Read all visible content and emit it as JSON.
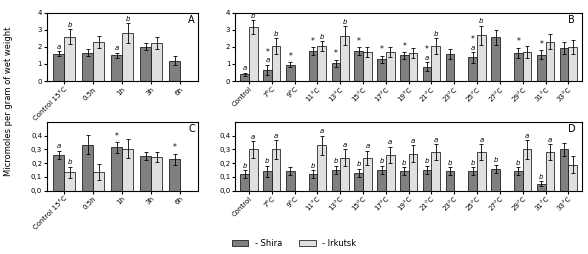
{
  "chart_data": [
    {
      "type": "bar",
      "title": "A",
      "categories": [
        "Control 15°C",
        "0.5h",
        "1h",
        "3h",
        "6h"
      ],
      "series": [
        {
          "name": "- Shira",
          "color": "#808080",
          "values": [
            1.6,
            1.65,
            1.5,
            2.0,
            1.2
          ],
          "errors": [
            0.15,
            0.2,
            0.15,
            0.2,
            0.25
          ],
          "letters": [
            "a",
            null,
            "a",
            null,
            null
          ]
        },
        {
          "name": "- Irkutsk",
          "color": "#e0e0e0",
          "values": [
            2.6,
            2.3,
            2.8,
            2.2,
            null
          ],
          "errors": [
            0.45,
            0.35,
            0.6,
            0.35,
            null
          ],
          "letters": [
            "b",
            null,
            "b",
            null,
            null
          ]
        }
      ],
      "ylim": [
        0,
        4
      ],
      "yticks": [
        0,
        1,
        2,
        3,
        4
      ]
    },
    {
      "type": "bar",
      "title": "B",
      "categories": [
        "Control",
        "7°C",
        "9°C",
        "11°C",
        "13°C",
        "15°C",
        "17°C",
        "19°C",
        "21°C",
        "23°C",
        "25°C",
        "27°C",
        "29°C",
        "31°C",
        "33°C"
      ],
      "series": [
        {
          "name": "- Shira",
          "color": "#808080",
          "values": [
            0.4,
            0.65,
            0.95,
            1.75,
            1.05,
            1.75,
            1.28,
            1.5,
            0.85,
            1.6,
            1.38,
            2.55,
            1.65,
            1.55,
            1.95
          ],
          "errors": [
            0.1,
            0.3,
            0.15,
            0.25,
            0.2,
            0.25,
            0.2,
            0.2,
            0.25,
            0.3,
            0.3,
            0.45,
            0.3,
            0.25,
            0.35
          ],
          "letters": [
            "a",
            "a",
            null,
            null,
            null,
            null,
            null,
            null,
            "a",
            null,
            "a",
            null,
            null,
            null,
            null
          ],
          "stars": [
            null,
            "*",
            "*",
            "*",
            "*",
            "*",
            "*",
            "*",
            "*",
            null,
            "*",
            null,
            "*",
            "*",
            null
          ]
        },
        {
          "name": "- Irkutsk",
          "color": "#e0e0e0",
          "values": [
            3.15,
            2.05,
            null,
            2.05,
            2.65,
            1.72,
            1.72,
            1.65,
            2.05,
            null,
            2.68,
            null,
            1.72,
            2.3,
            2.0
          ],
          "errors": [
            0.4,
            0.45,
            null,
            0.3,
            0.55,
            0.3,
            0.3,
            0.3,
            0.45,
            null,
            0.55,
            null,
            0.35,
            0.45,
            0.4
          ],
          "letters": [
            "b",
            "b",
            null,
            "b",
            "b",
            null,
            null,
            null,
            "b",
            null,
            "b",
            null,
            null,
            null,
            null
          ]
        }
      ],
      "ylim": [
        0,
        4
      ],
      "yticks": [
        0,
        1,
        2,
        3,
        4
      ]
    },
    {
      "type": "bar",
      "title": "C",
      "categories": [
        "Control 15°C",
        "0.5h",
        "1h",
        "3h",
        "6h"
      ],
      "series": [
        {
          "name": "- Shira",
          "color": "#808080",
          "values": [
            0.26,
            0.335,
            0.315,
            0.25,
            0.23
          ],
          "errors": [
            0.03,
            0.07,
            0.04,
            0.03,
            0.04
          ],
          "letters": [
            "a",
            null,
            null,
            null,
            null
          ],
          "stars": [
            null,
            null,
            "*",
            null,
            "*"
          ]
        },
        {
          "name": "- Irkutsk",
          "color": "#e0e0e0",
          "values": [
            0.135,
            0.135,
            0.305,
            0.245,
            null
          ],
          "errors": [
            0.04,
            0.06,
            0.07,
            0.04,
            null
          ],
          "letters": [
            "b",
            null,
            null,
            null,
            null
          ]
        }
      ],
      "ylim": [
        0,
        0.5
      ],
      "yticks": [
        {
          "value": 0.0,
          "label": "0,0"
        },
        {
          "value": 0.1,
          "label": "0,1"
        },
        {
          "value": 0.2,
          "label": "0,2"
        },
        {
          "value": 0.3,
          "label": "0,3"
        },
        {
          "value": 0.4,
          "label": "0,4"
        }
      ]
    },
    {
      "type": "bar",
      "title": "D",
      "categories": [
        "Control",
        "7°C",
        "9°C",
        "11°C",
        "13°C",
        "15°C",
        "17°C",
        "19°C",
        "21°C",
        "23°C",
        "25°C",
        "27°C",
        "29°C",
        "31°C",
        "33°C"
      ],
      "series": [
        {
          "name": "- Shira",
          "color": "#808080",
          "values": [
            0.12,
            0.14,
            0.14,
            0.12,
            0.15,
            0.13,
            0.15,
            0.14,
            0.15,
            0.14,
            0.14,
            0.16,
            0.14,
            0.05,
            0.3
          ],
          "errors": [
            0.03,
            0.04,
            0.03,
            0.03,
            0.03,
            0.03,
            0.03,
            0.03,
            0.03,
            0.03,
            0.03,
            0.03,
            0.03,
            0.02,
            0.05
          ],
          "letters": [
            "b",
            "b",
            null,
            "b",
            "b",
            "b",
            "b",
            "b",
            "b",
            "b",
            "b",
            "b",
            "b",
            "b",
            null
          ]
        },
        {
          "name": "- Irkutsk",
          "color": "#e0e0e0",
          "values": [
            0.3,
            0.3,
            null,
            0.33,
            0.24,
            0.24,
            0.26,
            0.27,
            0.28,
            null,
            0.28,
            null,
            0.3,
            0.28,
            0.19
          ],
          "errors": [
            0.06,
            0.07,
            null,
            0.07,
            0.06,
            0.05,
            0.06,
            0.06,
            0.06,
            null,
            0.06,
            null,
            0.07,
            0.06,
            0.06
          ],
          "letters": [
            "a",
            "a",
            null,
            "a",
            "a",
            "a",
            "a",
            "a",
            "a",
            null,
            "a",
            null,
            "a",
            "a",
            null
          ]
        }
      ],
      "ylim": [
        0,
        0.5
      ],
      "yticks": [
        {
          "value": 0.0,
          "label": "0,0"
        },
        {
          "value": 0.1,
          "label": "0,1"
        },
        {
          "value": 0.2,
          "label": "0,2"
        },
        {
          "value": 0.3,
          "label": "0,3"
        },
        {
          "value": 0.4,
          "label": "0,4"
        }
      ]
    }
  ],
  "ylabel": "Micromoles per gram of wet weight",
  "legend": "lower center"
}
